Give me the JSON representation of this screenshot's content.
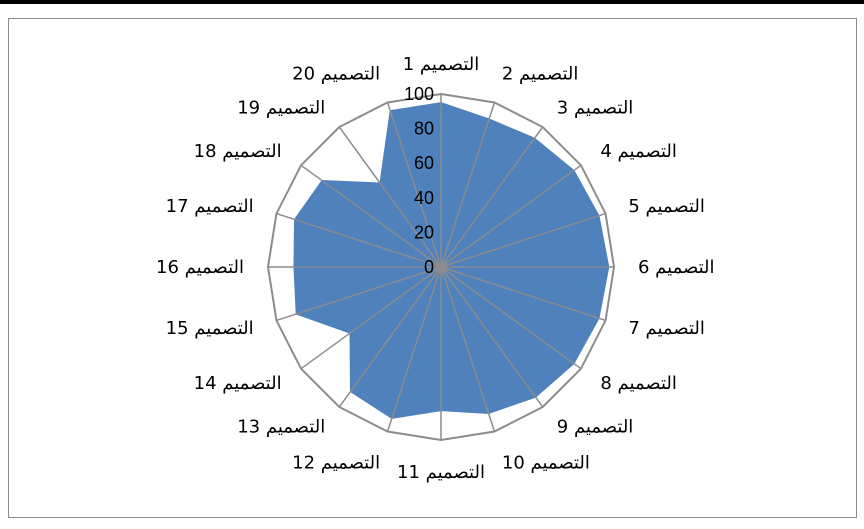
{
  "chart_data": {
    "type": "radar",
    "categories": [
      "التصميم 1",
      "التصميم 2",
      "التصميم 3",
      "التصميم 4",
      "التصميم 5",
      "التصميم 6",
      "التصميم 7",
      "التصميم 8",
      "التصميم 9",
      "التصميم 10",
      "التصميم 11",
      "التصميم 12",
      "التصميم 13",
      "التصميم 14",
      "التصميم 15",
      "التصميم 16",
      "التصميم 17",
      "التصميم 18",
      "التصميم 19",
      "التصميم 20"
    ],
    "series": [
      {
        "values": [
          95,
          90,
          92,
          95,
          96,
          97,
          96,
          95,
          93,
          89,
          83,
          92,
          89,
          65,
          88,
          85,
          89,
          85,
          60,
          95
        ]
      }
    ],
    "ylim": [
      0,
      100
    ],
    "ticks": [
      0,
      20,
      40,
      60,
      80,
      100
    ],
    "grid": true,
    "legend": "none",
    "colors": {
      "fill": "#4f81bd",
      "grid": "#8c8c8c"
    }
  }
}
